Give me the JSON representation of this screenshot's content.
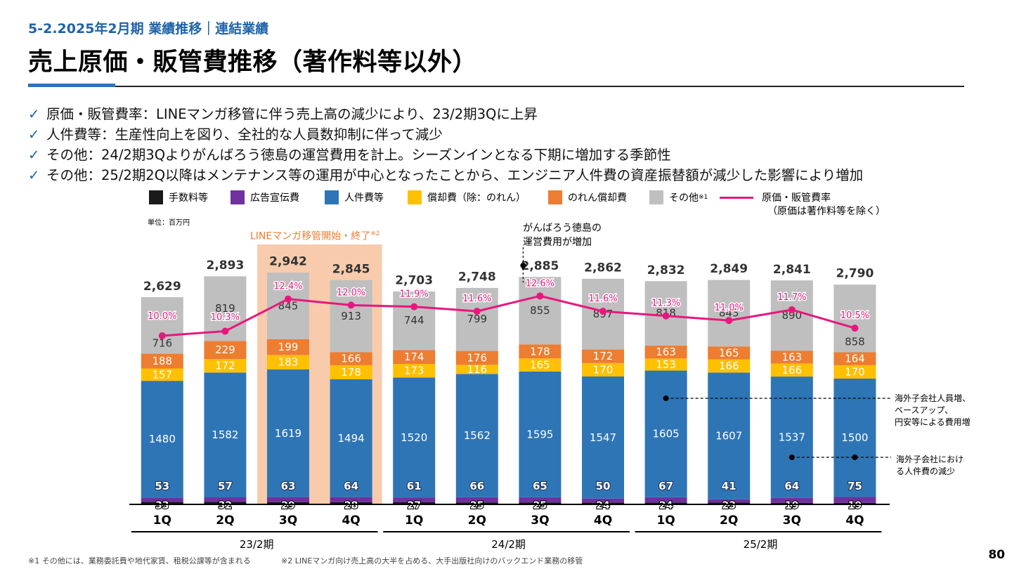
{
  "header": {
    "section": "5-2.2025年2月期 業績推移｜連結業績",
    "title": "売上原価・販管費推移（著作料等以外）"
  },
  "bullets": [
    "原価・販管費率：LINEマンガ移管に伴う売上高の減少により、23/2期3Qに上昇",
    "人件費等：生産性向上を図り、全社的な人員数抑制に伴って減少",
    "その他：24/2期3Qよりがんばろう徳島の運営費用を計上。シーズンインとなる下期に増加する季節性",
    "その他：25/2期2Q以降はメンテナンス等の運用が中心となったことから、エンジニア人件費の資産振替額が減少した影響により増加"
  ],
  "bullet_mark": "✓",
  "legend": {
    "fee": "手数料等",
    "ad": "広告宣伝費",
    "personnel": "人件費等",
    "depreciation": "償却費（除：のれん）",
    "goodwill": "のれん償却費",
    "other": "その他",
    "other_note": "※1",
    "ratio_line1": "原価・販管費率",
    "ratio_line2": "（原価は著作料等を除く）"
  },
  "unit": "単位：百万円",
  "annotations": {
    "line_manga": "LINEマンガ移管開始・終了",
    "line_manga_note": "※2",
    "tokushima_line1": "がんばろう徳島の",
    "tokushima_line2": "運営費用が増加",
    "right_note1": [
      "海外子会社人員増、",
      "ベースアップ、",
      "円安等による費用増"
    ],
    "right_note2": [
      "海外子会社におけ",
      "る人件費の減少"
    ]
  },
  "footnotes": {
    "note1": "※1 その他には、業務委託費や地代家賃、租税公課等が含まれる",
    "note2": "※2 LINEマンガ向け売上高の大半を占める、大手出版社向けのバックエンド業務の移管"
  },
  "page_number": "80",
  "colors": {
    "fee": "#1a1a1a",
    "ad": "#7030a0",
    "personnel": "#2e75b6",
    "depreciation": "#ffc000",
    "goodwill": "#ed7d31",
    "other": "#bfbfbf",
    "ratio": "#e8177d",
    "highlight": "#f8cbad",
    "accent": "#1f63a8"
  },
  "chart_data": {
    "type": "bar",
    "stacked": true,
    "categories": [
      "1Q",
      "2Q",
      "3Q",
      "4Q",
      "1Q",
      "2Q",
      "3Q",
      "4Q",
      "1Q",
      "2Q",
      "3Q",
      "4Q"
    ],
    "periods": [
      {
        "label": "23/2期",
        "start": 0,
        "end": 3
      },
      {
        "label": "24/2期",
        "start": 4,
        "end": 7
      },
      {
        "label": "25/2期",
        "start": 8,
        "end": 11
      }
    ],
    "series": [
      {
        "name": "手数料等",
        "key": "fee",
        "values": [
          33,
          32,
          29,
          28,
          27,
          25,
          25,
          24,
          24,
          23,
          19,
          19
        ]
      },
      {
        "name": "広告宣伝費",
        "key": "ad",
        "values": [
          53,
          57,
          63,
          64,
          61,
          66,
          65,
          50,
          67,
          41,
          64,
          75
        ]
      },
      {
        "name": "人件費等",
        "key": "personnel",
        "values": [
          1480,
          1582,
          1619,
          1494,
          1520,
          1562,
          1595,
          1547,
          1605,
          1607,
          1537,
          1500
        ]
      },
      {
        "name": "償却費（除：のれん）",
        "key": "depreciation",
        "values": [
          157,
          172,
          183,
          178,
          173,
          116,
          165,
          170,
          153,
          166,
          166,
          170
        ]
      },
      {
        "name": "のれん償却費",
        "key": "goodwill",
        "values": [
          188,
          229,
          199,
          166,
          174,
          176,
          178,
          172,
          163,
          165,
          163,
          164
        ]
      },
      {
        "name": "その他",
        "key": "other",
        "values": [
          716,
          819,
          845,
          913,
          744,
          799,
          855,
          897,
          818,
          843,
          890,
          858
        ]
      }
    ],
    "totals": [
      2629,
      2893,
      2942,
      2845,
      2703,
      2748,
      2885,
      2862,
      2832,
      2849,
      2841,
      2790
    ],
    "ratio": {
      "name": "原価・販管費率",
      "values": [
        10.0,
        10.3,
        12.4,
        12.0,
        11.9,
        11.6,
        12.6,
        11.6,
        11.3,
        11.0,
        11.7,
        10.5
      ],
      "labels": [
        "10.0%",
        "10.3%",
        "12.4%",
        "12.0%",
        "11.9%",
        "11.6%",
        "12.6%",
        "11.6%",
        "11.3%",
        "11.0%",
        "11.7%",
        "10.5%"
      ]
    }
  }
}
